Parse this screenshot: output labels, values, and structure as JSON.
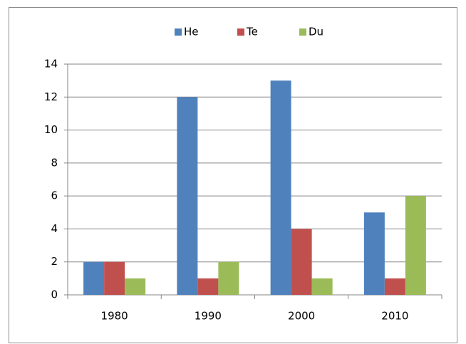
{
  "chart_data": {
    "type": "bar",
    "categories": [
      "1980",
      "1990",
      "2000",
      "2010"
    ],
    "series": [
      {
        "name": "He",
        "color": "#4f81bd",
        "values": [
          2,
          12,
          13,
          5
        ]
      },
      {
        "name": "Te",
        "color": "#c0504d",
        "values": [
          2,
          1,
          4,
          1
        ]
      },
      {
        "name": "Du",
        "color": "#9bbb59",
        "values": [
          1,
          2,
          1,
          6
        ]
      }
    ],
    "ylim": [
      0,
      14
    ],
    "yticks": [
      0,
      2,
      4,
      6,
      8,
      10,
      12,
      14
    ],
    "grid": true,
    "legend": "top"
  }
}
